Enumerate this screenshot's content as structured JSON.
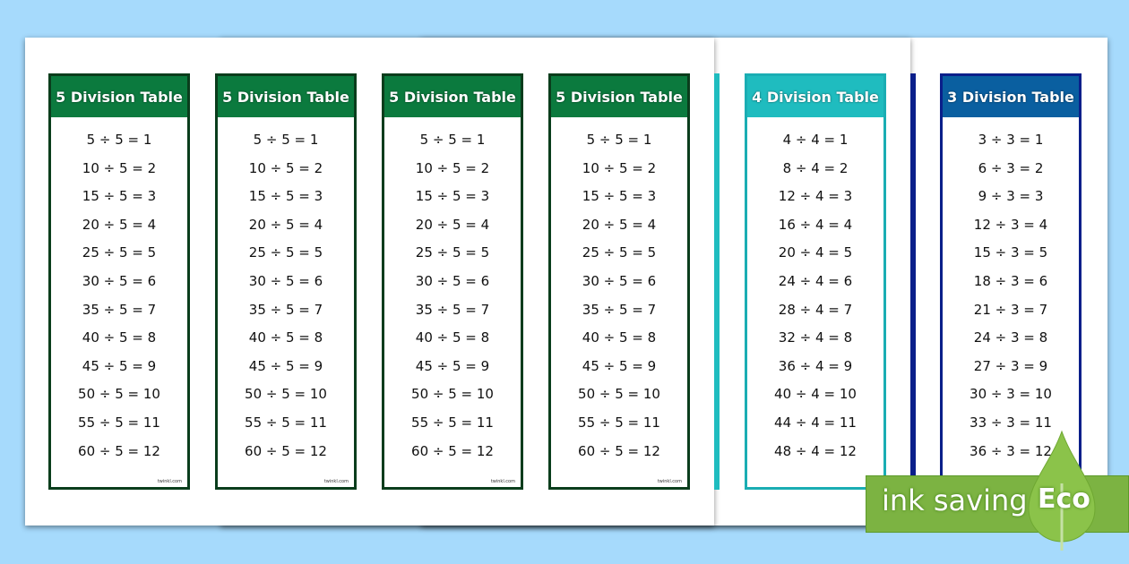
{
  "tables": [
    {
      "title": "5 Division Table",
      "color": "#0b7a3e",
      "border": "#0a3d1c",
      "footer": "twinkl.com",
      "rows": [
        "5 ÷ 5 = 1",
        "10 ÷ 5 = 2",
        "15 ÷ 5 = 3",
        "20 ÷ 5 = 4",
        "25 ÷ 5 = 5",
        "30 ÷ 5 = 6",
        "35 ÷ 5 = 7",
        "40 ÷ 5 = 8",
        "45 ÷ 5 = 9",
        "50 ÷ 5 = 10",
        "55 ÷ 5 = 11",
        "60 ÷ 5 = 12"
      ]
    },
    {
      "title": "5 Division Table",
      "color": "#0b7a3e",
      "border": "#0a3d1c",
      "footer": "twinkl.com",
      "rows": [
        "5 ÷ 5 = 1",
        "10 ÷ 5 = 2",
        "15 ÷ 5 = 3",
        "20 ÷ 5 = 4",
        "25 ÷ 5 = 5",
        "30 ÷ 5 = 6",
        "35 ÷ 5 = 7",
        "40 ÷ 5 = 8",
        "45 ÷ 5 = 9",
        "50 ÷ 5 = 10",
        "55 ÷ 5 = 11",
        "60 ÷ 5 = 12"
      ]
    },
    {
      "title": "5 Division Table",
      "color": "#0b7a3e",
      "border": "#0a3d1c",
      "footer": "twinkl.com",
      "rows": [
        "5 ÷ 5 = 1",
        "10 ÷ 5 = 2",
        "15 ÷ 5 = 3",
        "20 ÷ 5 = 4",
        "25 ÷ 5 = 5",
        "30 ÷ 5 = 6",
        "35 ÷ 5 = 7",
        "40 ÷ 5 = 8",
        "45 ÷ 5 = 9",
        "50 ÷ 5 = 10",
        "55 ÷ 5 = 11",
        "60 ÷ 5 = 12"
      ]
    },
    {
      "title": "5 Division Table",
      "color": "#0b7a3e",
      "border": "#0a3d1c",
      "footer": "twinkl.com",
      "rows": [
        "5 ÷ 5 = 1",
        "10 ÷ 5 = 2",
        "15 ÷ 5 = 3",
        "20 ÷ 5 = 4",
        "25 ÷ 5 = 5",
        "30 ÷ 5 = 6",
        "35 ÷ 5 = 7",
        "40 ÷ 5 = 8",
        "45 ÷ 5 = 9",
        "50 ÷ 5 = 10",
        "55 ÷ 5 = 11",
        "60 ÷ 5 = 12"
      ]
    },
    {
      "title": "4 Division Table",
      "color": "#1fbcbf",
      "border": "#1aadb3",
      "footer": "",
      "rows": [
        "4 ÷ 4 = 1",
        "8 ÷ 4 = 2",
        "12 ÷ 4 = 3",
        "16 ÷ 4 = 4",
        "20 ÷ 4 = 5",
        "24 ÷ 4 = 6",
        "28 ÷ 4 = 7",
        "32 ÷ 4 = 8",
        "36 ÷ 4 = 9",
        "40 ÷ 4 = 10",
        "44 ÷ 4 = 11",
        "48 ÷ 4 = 12"
      ]
    },
    {
      "title": "3 Division Table",
      "color": "#0a5fa0",
      "border": "#0a1f8a",
      "footer": "",
      "rows": [
        "3 ÷ 3 = 1",
        "6 ÷ 3 = 2",
        "9 ÷ 3 = 3",
        "12 ÷ 3 = 4",
        "15 ÷ 3 = 5",
        "18 ÷ 3 = 6",
        "21 ÷ 3 = 7",
        "24 ÷ 3 = 8",
        "27 ÷ 3 = 9",
        "30 ÷ 3 = 10",
        "33 ÷ 3 = 11",
        "36 ÷ 3 = 12"
      ]
    }
  ],
  "badge": {
    "text": "ink saving",
    "eco": "Eco",
    "color": "#7cb342"
  }
}
